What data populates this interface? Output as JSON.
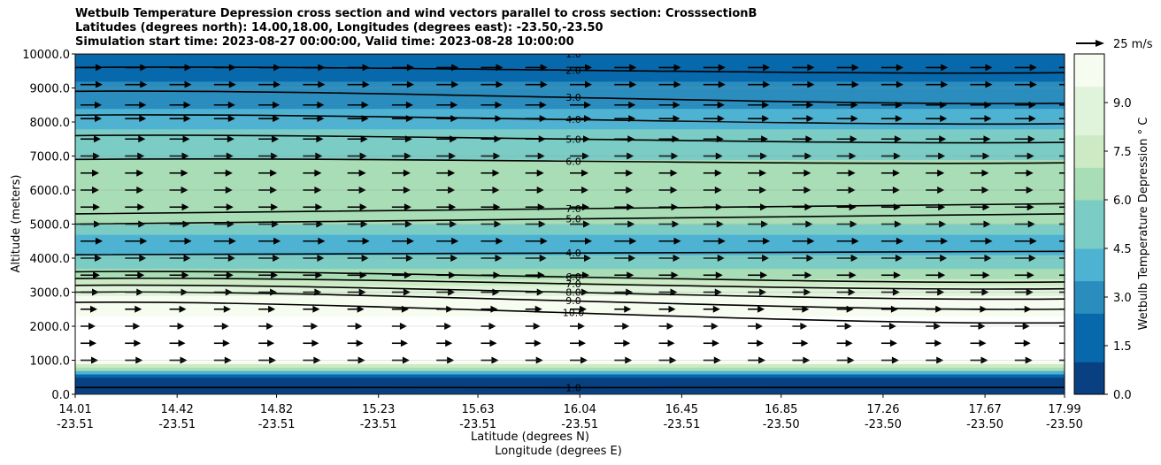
{
  "chart_data": {
    "type": "heatmap",
    "title_lines": [
      "Wetbulb Temperature Depression cross section and wind vectors parallel to cross section: CrosssectionB",
      "Latitudes (degrees north): 14.00,18.00, Longitudes (degrees east): -23.50,-23.50",
      "Simulation start time: 2023-08-27 00:00:00, Valid time: 2023-08-28 10:00:00"
    ],
    "ylabel": "Altitude (meters)",
    "xlabel_lat": "Latitude (degrees N)",
    "xlabel_lon": "Longitude (degrees E)",
    "ylim": [
      0,
      10000
    ],
    "y_ticks": [
      "0.0",
      "1000.0",
      "2000.0",
      "3000.0",
      "4000.0",
      "5000.0",
      "6000.0",
      "7000.0",
      "8000.0",
      "9000.0",
      "10000.0"
    ],
    "x_range": [
      14.01,
      17.99
    ],
    "x_ticks": [
      {
        "lat": "14.01",
        "lon": "-23.51"
      },
      {
        "lat": "14.42",
        "lon": "-23.51"
      },
      {
        "lat": "14.82",
        "lon": "-23.51"
      },
      {
        "lat": "15.23",
        "lon": "-23.51"
      },
      {
        "lat": "15.63",
        "lon": "-23.51"
      },
      {
        "lat": "16.04",
        "lon": "-23.51"
      },
      {
        "lat": "16.45",
        "lon": "-23.51"
      },
      {
        "lat": "16.85",
        "lon": "-23.50"
      },
      {
        "lat": "17.26",
        "lon": "-23.50"
      },
      {
        "lat": "17.67",
        "lon": "-23.50"
      },
      {
        "lat": "17.99",
        "lon": "-23.50"
      }
    ],
    "colorbar": {
      "label": "Wetbulb Temperature Depression ° C",
      "range": [
        0,
        10.5
      ],
      "ticks": [
        "0.0",
        "1.5",
        "3.0",
        "4.5",
        "6.0",
        "7.5",
        "9.0"
      ],
      "colors": [
        "#084081",
        "#0868ac",
        "#2b8cbe",
        "#4eb3d3",
        "#7bccc4",
        "#a8ddb5",
        "#ccebc5",
        "#e0f3db",
        "#f7fcf0"
      ]
    },
    "quiver_key": {
      "label": "25 m/s",
      "speed": 25
    },
    "profile": [
      {
        "alt": 0,
        "value": 0.5
      },
      {
        "alt": 500,
        "value": 0.8
      },
      {
        "alt": 1000,
        "value": 11.0
      },
      {
        "alt": 2000,
        "value": 11.0
      },
      {
        "alt": 2700,
        "value": 10.0
      },
      {
        "alt": 3000,
        "value": 9.0
      },
      {
        "alt": 3300,
        "value": 7.5
      },
      {
        "alt": 3700,
        "value": 6.0
      },
      {
        "alt": 4300,
        "value": 3.8
      },
      {
        "alt": 4700,
        "value": 4.6
      },
      {
        "alt": 5200,
        "value": 6.5
      },
      {
        "alt": 5800,
        "value": 6.8
      },
      {
        "alt": 6500,
        "value": 6.3
      },
      {
        "alt": 7500,
        "value": 5.2
      },
      {
        "alt": 8000,
        "value": 4.2
      },
      {
        "alt": 8500,
        "value": 3.2
      },
      {
        "alt": 9200,
        "value": 2.4
      },
      {
        "alt": 10000,
        "value": 1.2
      }
    ],
    "contours": [
      {
        "label": "1.0",
        "alt": 10000,
        "tilt": 0
      },
      {
        "label": "2.0",
        "alt": 9600,
        "tilt": -150
      },
      {
        "label": "3.0",
        "alt": 8900,
        "tilt": -350
      },
      {
        "label": "4.0",
        "alt": 8200,
        "tilt": -250
      },
      {
        "label": "5.0",
        "alt": 7600,
        "tilt": -200
      },
      {
        "label": "6.0",
        "alt": 6900,
        "tilt": -100
      },
      {
        "label": "7.0",
        "alt": 5300,
        "tilt": 300
      },
      {
        "label": "5.0",
        "alt": 5000,
        "tilt": 300
      },
      {
        "label": "4.0",
        "alt": 4100,
        "tilt": 100
      },
      {
        "label": "6.0",
        "alt": 3600,
        "tilt": -300
      },
      {
        "label": "7.0",
        "alt": 3400,
        "tilt": -300
      },
      {
        "label": "8.0",
        "alt": 3200,
        "tilt": -400
      },
      {
        "label": "9.0",
        "alt": 3000,
        "tilt": -500
      },
      {
        "label": "10.0",
        "alt": 2700,
        "tilt": -600
      },
      {
        "label": "1.0",
        "alt": 200,
        "tilt": 0
      }
    ],
    "wind_rows": [
      {
        "alt": 9600,
        "u": 25
      },
      {
        "alt": 9100,
        "u": 25
      },
      {
        "alt": 8500,
        "u": 24
      },
      {
        "alt": 8100,
        "u": 24
      },
      {
        "alt": 7500,
        "u": 23
      },
      {
        "alt": 7000,
        "u": 22
      },
      {
        "alt": 6500,
        "u": 21
      },
      {
        "alt": 6000,
        "u": 21
      },
      {
        "alt": 5500,
        "u": 22
      },
      {
        "alt": 5000,
        "u": 23
      },
      {
        "alt": 4500,
        "u": 25
      },
      {
        "alt": 4000,
        "u": 24
      },
      {
        "alt": 3500,
        "u": 22
      },
      {
        "alt": 3000,
        "u": 21
      },
      {
        "alt": 2500,
        "u": 19
      },
      {
        "alt": 2000,
        "u": 17
      },
      {
        "alt": 1500,
        "u": 18
      },
      {
        "alt": 1000,
        "u": 20
      }
    ]
  }
}
